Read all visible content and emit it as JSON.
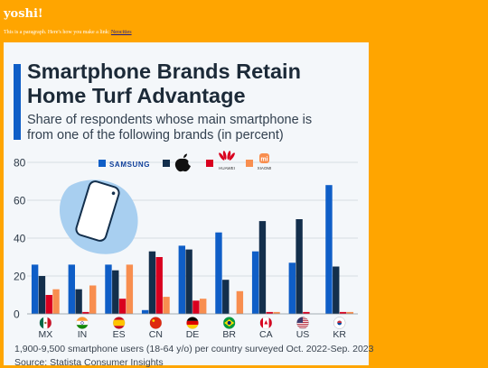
{
  "page": {
    "site_title": "yoshi!",
    "intro_text": "This is a paragraph. Here's how you make a link: ",
    "link_text": "Neocities"
  },
  "colors": {
    "background": "#ffa500",
    "card": "#f4f7fa",
    "samsung": "#0f5ec7",
    "apple": "#132f4c",
    "huawei": "#d9001f",
    "xiaomi": "#f88e4f"
  },
  "legend_icons": [
    "samsung-wordmark",
    "apple-logo-icon",
    "huawei-logo-icon",
    "xiaomi-logo-icon"
  ],
  "legend_captions": {
    "samsung": "SAMSUNG",
    "huawei": "HUAWEI",
    "xiaomi": "XIAOMI"
  },
  "chart_data": {
    "type": "bar",
    "title": "Smartphone Brands Retain Home Turf Advantage",
    "subtitle": "Share of respondents whose main smartphone is from one of the following brands (in percent)",
    "categories": [
      "MX",
      "IN",
      "ES",
      "CN",
      "DE",
      "BR",
      "CA",
      "US",
      "KR"
    ],
    "series": [
      {
        "name": "Samsung",
        "values": [
          26,
          26,
          26,
          2,
          36,
          43,
          33,
          27,
          68
        ]
      },
      {
        "name": "Apple",
        "values": [
          20,
          13,
          23,
          33,
          34,
          18,
          49,
          50,
          25
        ]
      },
      {
        "name": "Huawei",
        "values": [
          10,
          1,
          8,
          30,
          7,
          0,
          1,
          1,
          1
        ]
      },
      {
        "name": "Xiaomi",
        "values": [
          13,
          15,
          26,
          9,
          8,
          12,
          1,
          0,
          1
        ]
      }
    ],
    "ylim": [
      0,
      80
    ],
    "yticks": [
      0,
      20,
      40,
      60,
      80
    ],
    "grid": true,
    "legend": "top",
    "footnote": "1,900-9,500 smartphone users (18-64 y/o) per country surveyed Oct. 2022-Sep. 2023",
    "source": "Source: Statista Consumer Insights"
  }
}
